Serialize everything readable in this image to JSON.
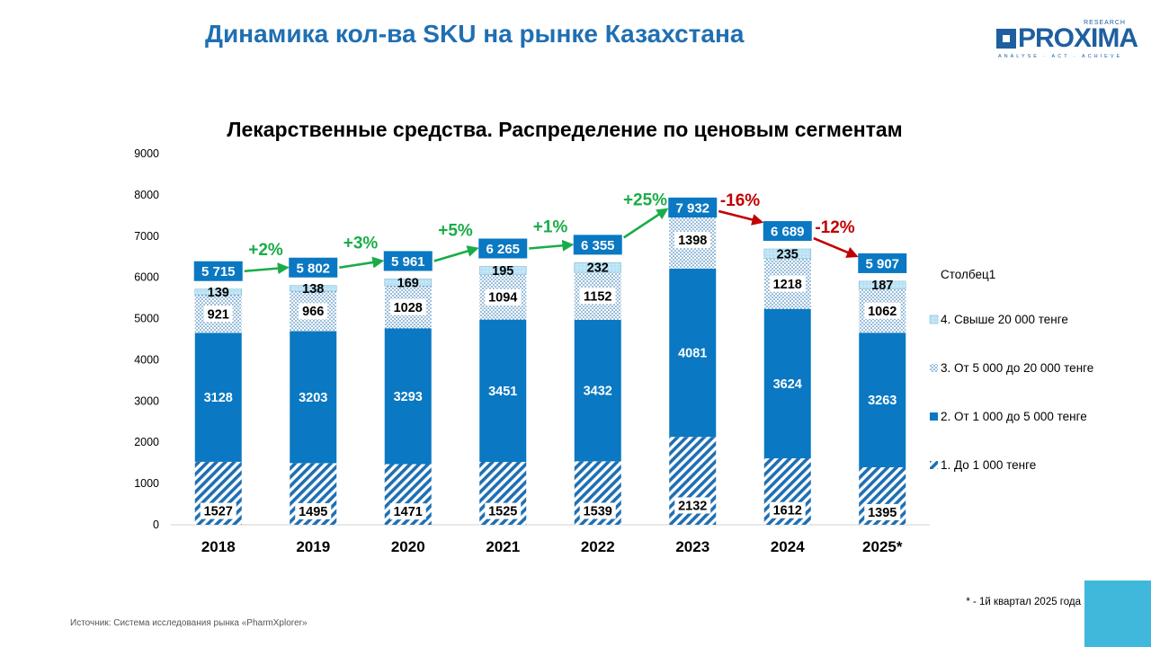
{
  "page": {
    "title": "Динамика кол-ва SKU на рынке Казахстана",
    "logo": {
      "name": "PROXIMA",
      "research": "RESEARCH",
      "tagline": "ANALYSE · ACT · ACHIEVE"
    },
    "footnote": "* - 1й квартал 2025 года",
    "source": "Источник: Система исследования рынка «PharmXplorer»"
  },
  "colors": {
    "title": "#1f6fb2",
    "seg1": "#1f6fb2",
    "seg2": "#0a78c2",
    "seg3": "#1f6fb2",
    "seg4": "#b9e2f4",
    "total_box": "#0a78c2",
    "growth_up": "#1aac48",
    "growth_down": "#c00000",
    "corner": "#3fb8dc"
  },
  "chart_data": {
    "type": "bar",
    "stacked": true,
    "title": "Лекарственные средства. Распределение по ценовым сегментам",
    "categories": [
      "2018",
      "2019",
      "2020",
      "2021",
      "2022",
      "2023",
      "2024",
      "2025*"
    ],
    "ylim": [
      0,
      9000
    ],
    "yticks": [
      0,
      1000,
      2000,
      3000,
      4000,
      5000,
      6000,
      7000,
      8000,
      9000
    ],
    "legend_title": "Столбец1",
    "legend_position": "right",
    "grid": false,
    "series": [
      {
        "name": "1. До 1 000 тенге",
        "pattern": "hatch",
        "values": [
          1527,
          1495,
          1471,
          1525,
          1539,
          2132,
          1612,
          1395
        ]
      },
      {
        "name": "2. От 1 000 до  5 000 тенге",
        "pattern": "solid",
        "values": [
          3128,
          3203,
          3293,
          3451,
          3432,
          4081,
          3624,
          3263
        ]
      },
      {
        "name": "3. От 5 000  до 20 000 тенге",
        "pattern": "dots",
        "values": [
          921,
          966,
          1028,
          1094,
          1152,
          1398,
          1218,
          1062
        ]
      },
      {
        "name": "4. Свыше 20 000 тенге",
        "pattern": "light",
        "values": [
          139,
          138,
          169,
          195,
          232,
          321,
          235,
          187
        ]
      }
    ],
    "totals": [
      "5 715",
      "5 802",
      "5 961",
      "6 265",
      "6 355",
      "7 932",
      "6 689",
      "5 907"
    ],
    "total_values": [
      5715,
      5802,
      5961,
      6265,
      6355,
      7932,
      6689,
      5907
    ],
    "growth": [
      "+2%",
      "+3%",
      "+5%",
      "+1%",
      "+25%",
      "-16%",
      "-12%"
    ]
  }
}
